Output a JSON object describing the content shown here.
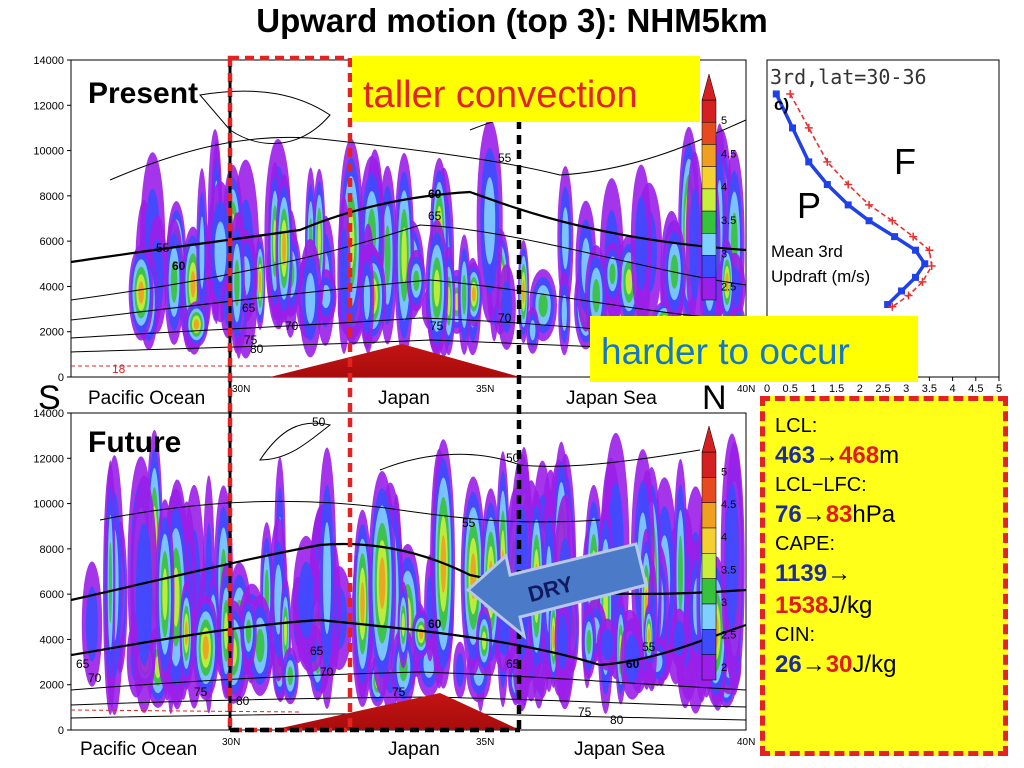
{
  "title": "Upward motion (top 3): NHM5km",
  "chart_data": [
    {
      "type": "heatmap",
      "panel": "Present",
      "ylim": [
        0,
        14000
      ],
      "yticks": [
        "0",
        "2000",
        "4000",
        "6000",
        "8000",
        "10000",
        "12000",
        "14000"
      ],
      "xticks": [
        "30N",
        "35N",
        "40N"
      ],
      "region_labels": [
        "Pacific Ocean",
        "Japan",
        "Japan Sea"
      ],
      "contour_labels": [
        "55",
        "60",
        "60",
        "65",
        "65",
        "70",
        "70",
        "75",
        "75",
        "80",
        "18"
      ],
      "colorbar_ticks": [
        "5",
        "4.5",
        "4",
        "3.5",
        "3",
        "2.5"
      ]
    },
    {
      "type": "heatmap",
      "panel": "Future",
      "ylim": [
        0,
        14000
      ],
      "yticks": [
        "0",
        "2000",
        "4000",
        "6000",
        "8000",
        "10000",
        "12000",
        "14000"
      ],
      "xticks": [
        "30N",
        "35N",
        "40N"
      ],
      "region_labels": [
        "Pacific Ocean",
        "Japan",
        "Japan Sea"
      ],
      "contour_labels": [
        "50",
        "50",
        "55",
        "55",
        "60",
        "60",
        "65",
        "65",
        "65",
        "70",
        "70",
        "75",
        "75",
        "75",
        "80",
        "80"
      ],
      "colorbar_ticks": [
        "5",
        "4.5",
        "4",
        "3.5",
        "3",
        "2.5",
        "2"
      ]
    },
    {
      "type": "line",
      "title": "3rd,lat=30-36",
      "panel_tag": "c)",
      "xticks": [
        "0",
        "0.5",
        "1",
        "1.5",
        "2",
        "2.5",
        "3",
        "3.5",
        "4",
        "4.5",
        "5"
      ],
      "xlim": [
        0,
        5
      ],
      "ylabel": "Mean 3rd Updraft (m/s)",
      "series": [
        {
          "name": "P",
          "color": "#2040e8",
          "x": [
            0.2,
            0.55,
            0.9,
            1.3,
            1.75,
            2.2,
            2.75,
            3.2,
            3.4,
            3.2,
            2.9,
            2.6
          ],
          "y": [
            12500,
            11000,
            9500,
            8500,
            7600,
            6900,
            6200,
            5600,
            5000,
            4400,
            3800,
            3200
          ]
        },
        {
          "name": "F",
          "color": "#e83030",
          "x": [
            0.5,
            0.9,
            1.3,
            1.75,
            2.2,
            2.7,
            3.15,
            3.5,
            3.55,
            3.35,
            3.05,
            2.7
          ],
          "y": [
            12500,
            11000,
            9500,
            8500,
            7600,
            6900,
            6200,
            5600,
            4900,
            4200,
            3600,
            3100
          ]
        }
      ]
    }
  ],
  "annotations": {
    "present_label": "Present",
    "future_label": "Future",
    "taller": "taller convection",
    "harder": "harder to occur",
    "south": "S",
    "north": "N",
    "dry": "DRY",
    "p_tag": "P",
    "f_tag": "F",
    "updraft_line1": "Mean 3rd",
    "updraft_line2": "Updraft (m/s)"
  },
  "stats": {
    "lcl_label": "LCL:",
    "lcl_present": "463",
    "lcl_future": "468",
    "lcl_unit": "m",
    "lfc_label": "LCL−LFC:",
    "lfc_present": "76",
    "lfc_future": "83",
    "lfc_unit": "hPa",
    "cape_label": "CAPE:",
    "cape_present": "1139",
    "cape_future": "1538",
    "cape_unit": "J/kg",
    "cin_label": "CIN:",
    "cin_present": "26",
    "cin_future": "30",
    "cin_unit": "J/kg",
    "arrow": "→"
  },
  "colors": {
    "present_series": "#2040e8",
    "future_series": "#e83030",
    "highlight": "#ffff00",
    "dashed_red": "#e32222",
    "dry_arrow": "#4a7ac8"
  }
}
